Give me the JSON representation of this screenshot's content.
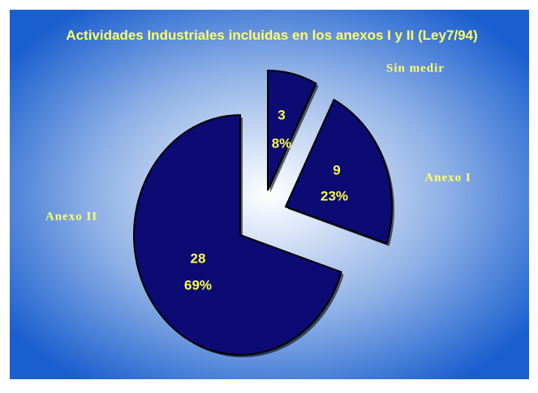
{
  "chart_data": {
    "type": "pie",
    "title": "Actividades Industriales incluidas en los anexos I y II (Ley7/94)",
    "categories": [
      "Sin medir",
      "Anexo I",
      "Anexo II"
    ],
    "values": [
      3,
      9,
      28
    ],
    "percent_labels": [
      "8%",
      "23%",
      "69%"
    ],
    "color": "#0b0b73"
  }
}
